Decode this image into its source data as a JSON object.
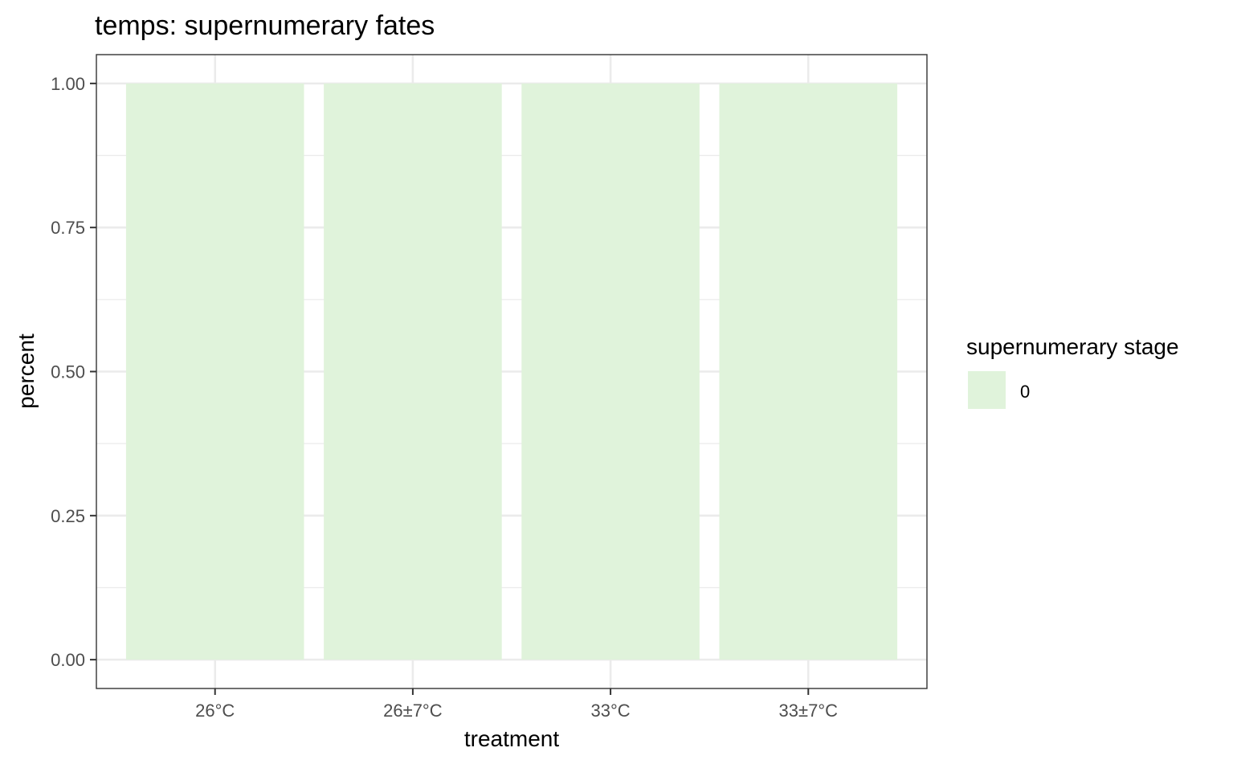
{
  "chart_data": {
    "type": "bar",
    "title": "temps: supernumerary fates",
    "xlabel": "treatment",
    "ylabel": "percent",
    "categories": [
      "26°C",
      "26±7°C",
      "33°C",
      "33±7°C"
    ],
    "series": [
      {
        "name": "0",
        "values": [
          1.0,
          1.0,
          1.0,
          1.0
        ]
      }
    ],
    "ylim": [
      -0.05,
      1.05
    ],
    "yticks": [
      0.0,
      0.25,
      0.5,
      0.75,
      1.0
    ],
    "ytick_labels": [
      "0.00",
      "0.25",
      "0.50",
      "0.75",
      "1.00"
    ],
    "grid": true,
    "legend": {
      "title": "supernumerary stage",
      "position": "right"
    },
    "colors": {
      "series_fill": "#e0f3db",
      "grid": "#ebebeb",
      "panel_border": "#333333",
      "text": "#4d4d4d"
    }
  }
}
